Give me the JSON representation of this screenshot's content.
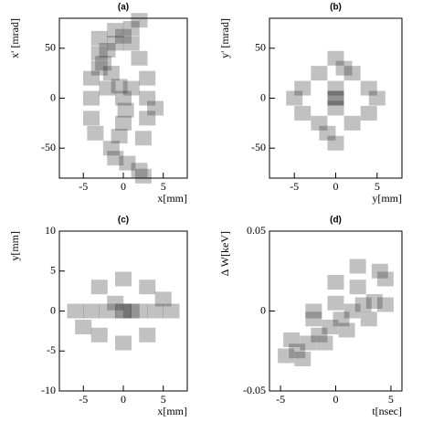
{
  "chart_data": [
    {
      "type": "scatter",
      "title": "(a)",
      "x_label": "x[mm]",
      "y_label": "x' [mrad]",
      "color": "#222222",
      "xlim": [
        -8,
        8
      ],
      "xticks": [
        -5,
        0,
        5
      ],
      "ylim": [
        -80,
        80
      ],
      "yticks": [
        -50,
        0,
        50
      ],
      "x": [
        2,
        1,
        0,
        -1,
        -2,
        -3,
        -2.5,
        -1.5,
        -0.5,
        0,
        0.3,
        0,
        -0.5,
        -1.5,
        -1,
        0.5,
        2,
        2.5,
        -4,
        -4,
        -4,
        -3.5,
        3,
        3,
        3,
        2.5,
        -3,
        2,
        1,
        -1,
        -3,
        4,
        -2,
        1
      ],
      "y": [
        78,
        70,
        62,
        55,
        48,
        45,
        35,
        25,
        12,
        0,
        -12,
        -25,
        -38,
        -50,
        -60,
        -65,
        -72,
        -78,
        20,
        0,
        -20,
        -35,
        20,
        0,
        -20,
        -40,
        30,
        40,
        55,
        68,
        60,
        -10,
        10,
        10
      ]
    },
    {
      "type": "scatter",
      "title": "(b)",
      "x_label": "y[mm]",
      "y_label": "y' [mrad]",
      "color": "#222222",
      "xlim": [
        -8,
        8
      ],
      "xticks": [
        -5,
        0,
        5
      ],
      "ylim": [
        -80,
        80
      ],
      "yticks": [
        -50,
        0,
        50
      ],
      "x": [
        0,
        0,
        0,
        0,
        -2,
        2,
        -2,
        2,
        -4,
        4,
        -4,
        4,
        -5,
        5,
        0,
        0,
        -1,
        1
      ],
      "y": [
        0,
        10,
        -10,
        0,
        25,
        25,
        -25,
        -25,
        10,
        10,
        -15,
        -15,
        0,
        0,
        40,
        -45,
        -35,
        30
      ]
    },
    {
      "type": "scatter",
      "title": "(c)",
      "x_label": "x[mm]",
      "y_label": "y[mm]",
      "color": "#222222",
      "xlim": [
        -8,
        8
      ],
      "xticks": [
        -5,
        0,
        5
      ],
      "ylim": [
        -10,
        10
      ],
      "yticks": [
        -10,
        -5,
        0,
        5,
        10
      ],
      "x": [
        0,
        0,
        -2,
        2,
        -4,
        4,
        -6,
        6,
        -3,
        3,
        -3,
        3,
        0,
        0,
        -5,
        5,
        1,
        -1
      ],
      "y": [
        0,
        0,
        0,
        0,
        0,
        0,
        0,
        0,
        3,
        3,
        -3,
        -3,
        4,
        -4,
        -2,
        1.5,
        0,
        1
      ]
    },
    {
      "type": "scatter",
      "title": "(d)",
      "x_label": "t[nsec]",
      "y_label": "Δ W[keV]",
      "color": "#222222",
      "xlim": [
        -6,
        6
      ],
      "xticks": [
        -5,
        0,
        5
      ],
      "ylim": [
        -0.05,
        0.05
      ],
      "yticks": [
        -0.05,
        0,
        0.05
      ],
      "x": [
        -4.5,
        -3.5,
        -2.5,
        -1.5,
        -0.5,
        0.5,
        1.5,
        2.5,
        3.5,
        4.5,
        -4,
        -2,
        0,
        2,
        4,
        -3,
        -1,
        1,
        3,
        4.5,
        2,
        0,
        -2
      ],
      "y": [
        -0.028,
        -0.025,
        -0.02,
        -0.015,
        -0.01,
        -0.005,
        0,
        0.004,
        0.006,
        0.004,
        -0.018,
        -0.005,
        0.005,
        0.015,
        0.025,
        -0.03,
        -0.02,
        -0.012,
        -0.005,
        0.02,
        0.028,
        0.018,
        0
      ]
    }
  ]
}
